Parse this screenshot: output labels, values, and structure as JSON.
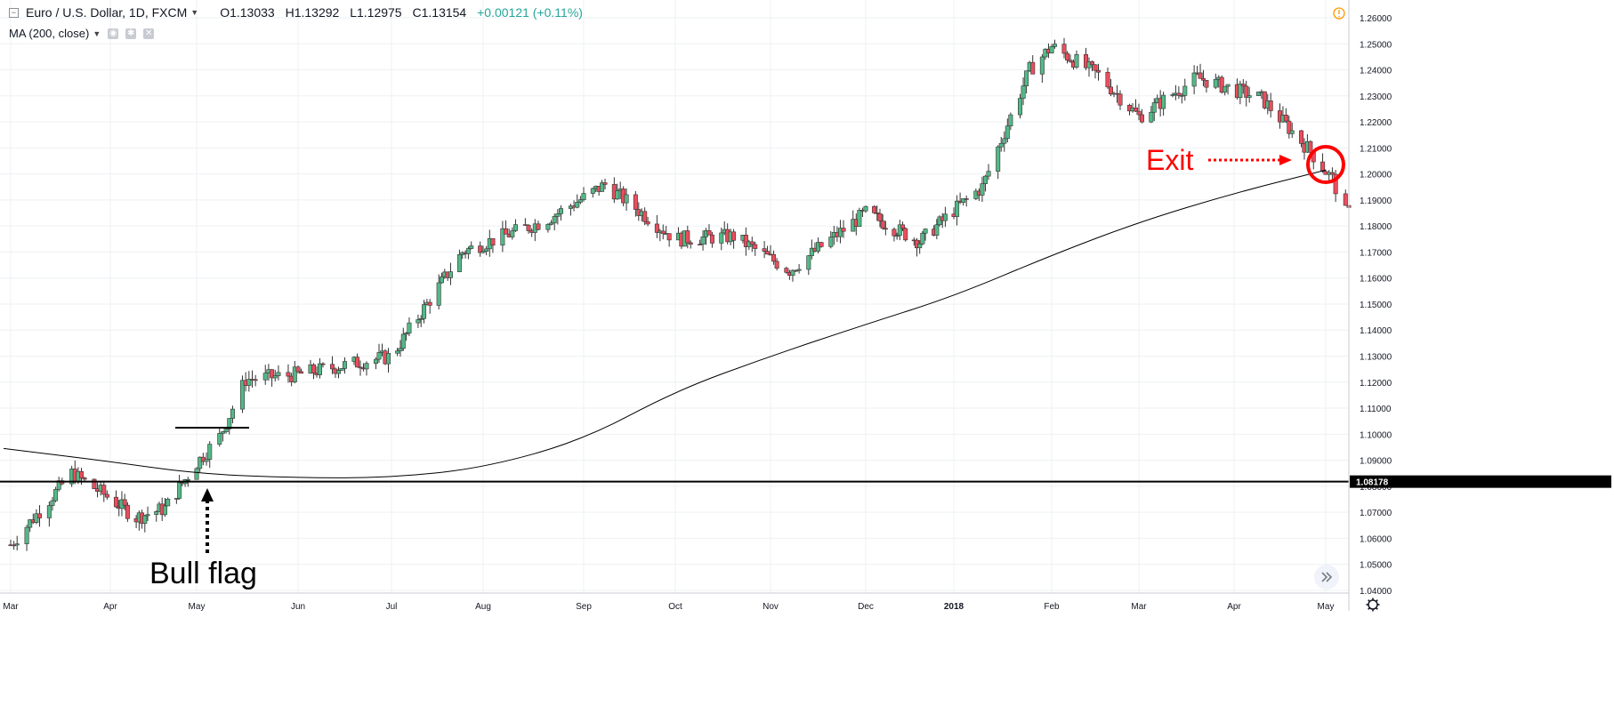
{
  "header": {
    "symbol": "Euro / U.S. Dollar, 1D, FXCM",
    "open": "O1.13033",
    "high": "H1.13292",
    "low": "L1.12975",
    "close": "C1.13154",
    "change": "+0.00121 (+0.11%)"
  },
  "indicator": {
    "label": "MA (200, close)"
  },
  "price_label": "1.08178",
  "annotations": {
    "exit": "Exit",
    "bull_flag": "Bull flag"
  },
  "colors": {
    "up": "#53b987",
    "down": "#eb4d5c",
    "annotation": "#ff0000",
    "ma": "#000000"
  },
  "chart_data": {
    "type": "candlestick",
    "series": [
      {
        "kind": "ohlc",
        "x": [
          "Mar 1",
          "Mar 20",
          "Apr 10",
          "Apr 20",
          "May 1",
          "May 8",
          "May 16",
          "Jun 1",
          "Jul 1",
          "Jul 25",
          "Aug 20",
          "Sep 8",
          "Oct 1",
          "Oct 20",
          "Nov 7",
          "Dec 1",
          "Dec 20",
          "Jan 10",
          "Jan 25",
          "Feb 1",
          "Feb 16",
          "Mar 1",
          "Mar 20",
          "Apr 10",
          "Apr 25",
          "May 3",
          "May 7"
        ],
        "close": [
          1.0575,
          1.085,
          1.068,
          1.0715,
          1.089,
          1.099,
          1.121,
          1.123,
          1.13,
          1.17,
          1.182,
          1.196,
          1.175,
          1.176,
          1.163,
          1.185,
          1.174,
          1.195,
          1.24,
          1.249,
          1.238,
          1.222,
          1.237,
          1.229,
          1.21,
          1.198,
          1.185
        ]
      },
      {
        "name": "MA (200, close)",
        "kind": "line",
        "x": [
          "Mar 1",
          "Apr 1",
          "May 1",
          "Jun 1",
          "Jul 1",
          "Aug 1",
          "Sep 1",
          "Oct 1",
          "Nov 1",
          "Dec 1",
          "Jan 1",
          "Feb 1",
          "Mar 1",
          "Apr 1",
          "May 1"
        ],
        "y": [
          1.0945,
          1.0895,
          1.0848,
          1.0832,
          1.0833,
          1.087,
          1.0978,
          1.1166,
          1.13,
          1.1422,
          1.153,
          1.1688,
          1.1815,
          1.1926,
          1.2015
        ]
      }
    ],
    "resistance_line": 1.1025,
    "horizontal_line": 1.08178,
    "x_ticks": [
      "Mar",
      "Apr",
      "May",
      "Jun",
      "Jul",
      "Aug",
      "Sep",
      "Oct",
      "Nov",
      "Dec",
      "2018",
      "Feb",
      "Mar",
      "Apr",
      "May"
    ],
    "y_ticks": [
      "1.04000",
      "1.05000",
      "1.06000",
      "1.07000",
      "1.08000",
      "1.09000",
      "1.10000",
      "1.11000",
      "1.12000",
      "1.13000",
      "1.14000",
      "1.15000",
      "1.16000",
      "1.17000",
      "1.18000",
      "1.19000",
      "1.20000",
      "1.21000",
      "1.22000",
      "1.23000",
      "1.24000",
      "1.25000",
      "1.26000"
    ],
    "ylim": [
      1.04,
      1.26
    ],
    "grid": true
  }
}
